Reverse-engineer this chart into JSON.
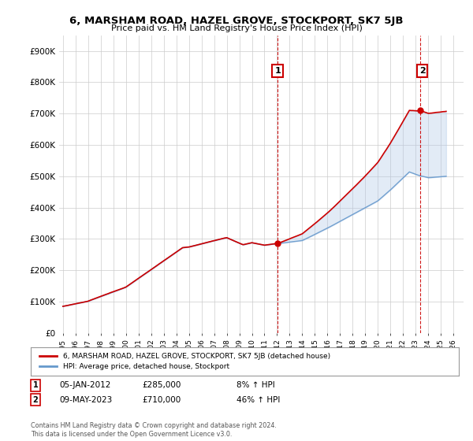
{
  "title": "6, MARSHAM ROAD, HAZEL GROVE, STOCKPORT, SK7 5JB",
  "subtitle": "Price paid vs. HM Land Registry's House Price Index (HPI)",
  "ylabel_ticks": [
    "£0",
    "£100K",
    "£200K",
    "£300K",
    "£400K",
    "£500K",
    "£600K",
    "£700K",
    "£800K",
    "£900K"
  ],
  "ytick_values": [
    0,
    100000,
    200000,
    300000,
    400000,
    500000,
    600000,
    700000,
    800000,
    900000
  ],
  "ylim": [
    0,
    950000
  ],
  "xlim_start": 1994.7,
  "xlim_end": 2026.8,
  "x_ticks": [
    1995,
    1996,
    1997,
    1998,
    1999,
    2000,
    2001,
    2002,
    2003,
    2004,
    2005,
    2006,
    2007,
    2008,
    2009,
    2010,
    2011,
    2012,
    2013,
    2014,
    2015,
    2016,
    2017,
    2018,
    2019,
    2020,
    2021,
    2022,
    2023,
    2024,
    2025,
    2026
  ],
  "hpi_color": "#aec6e8",
  "hpi_line_color": "#6699cc",
  "price_color": "#cc0000",
  "vline_color": "#cc0000",
  "grid_color": "#cccccc",
  "background_color": "#ffffff",
  "sale1_date": 2012.04,
  "sale1_price": 285000,
  "sale1_label": "1",
  "sale2_date": 2023.37,
  "sale2_price": 710000,
  "sale2_label": "2",
  "legend_line1": "6, MARSHAM ROAD, HAZEL GROVE, STOCKPORT, SK7 5JB (detached house)",
  "legend_line2": "HPI: Average price, detached house, Stockport",
  "note1_label": "1",
  "note1_date": "05-JAN-2012",
  "note1_price": "£285,000",
  "note1_hpi": "8% ↑ HPI",
  "note2_label": "2",
  "note2_date": "09-MAY-2023",
  "note2_price": "£710,000",
  "note2_hpi": "46% ↑ HPI",
  "footer": "Contains HM Land Registry data © Crown copyright and database right 2024.\nThis data is licensed under the Open Government Licence v3.0."
}
